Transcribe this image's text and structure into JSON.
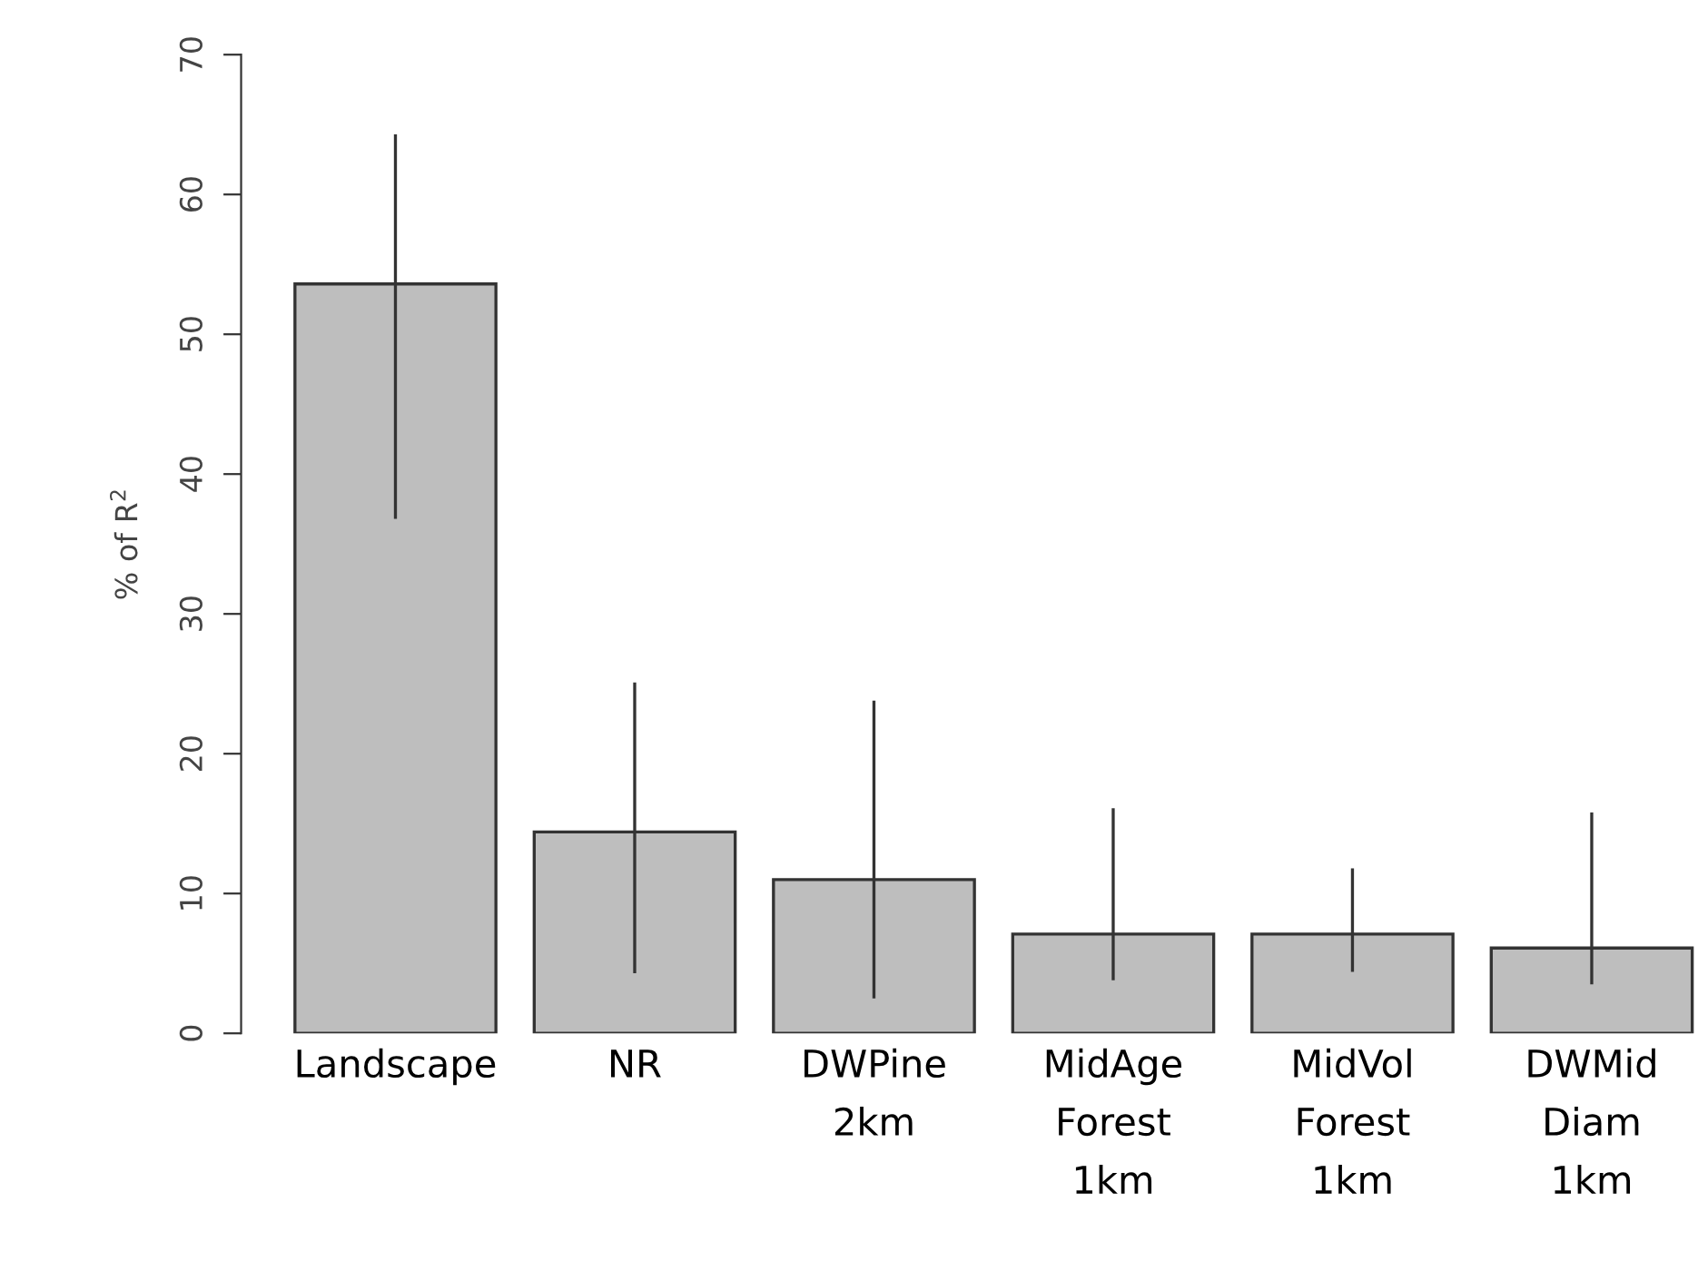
{
  "chart_data": {
    "type": "bar",
    "ylabel": "% of R$^{2}$",
    "categories": [
      "Landscape",
      "NR",
      "DWPine\n2km",
      "MidAge\nForest\n1km",
      "MidVol\nForest\n1km",
      "DWMid\nDiam\n1km"
    ],
    "values": [
      53.6,
      14.4,
      11.0,
      7.1,
      7.1,
      6.1
    ],
    "errors": [
      [
        36.8,
        64.3
      ],
      [
        4.3,
        25.1
      ],
      [
        2.5,
        23.8
      ],
      [
        3.8,
        16.1
      ],
      [
        4.4,
        11.8
      ],
      [
        3.5,
        15.8
      ]
    ],
    "color": "#bebebe",
    "ylim": [
      0,
      70
    ],
    "yticks": [
      0,
      10,
      20,
      30,
      40,
      50,
      60,
      70
    ],
    "grid": false
  }
}
